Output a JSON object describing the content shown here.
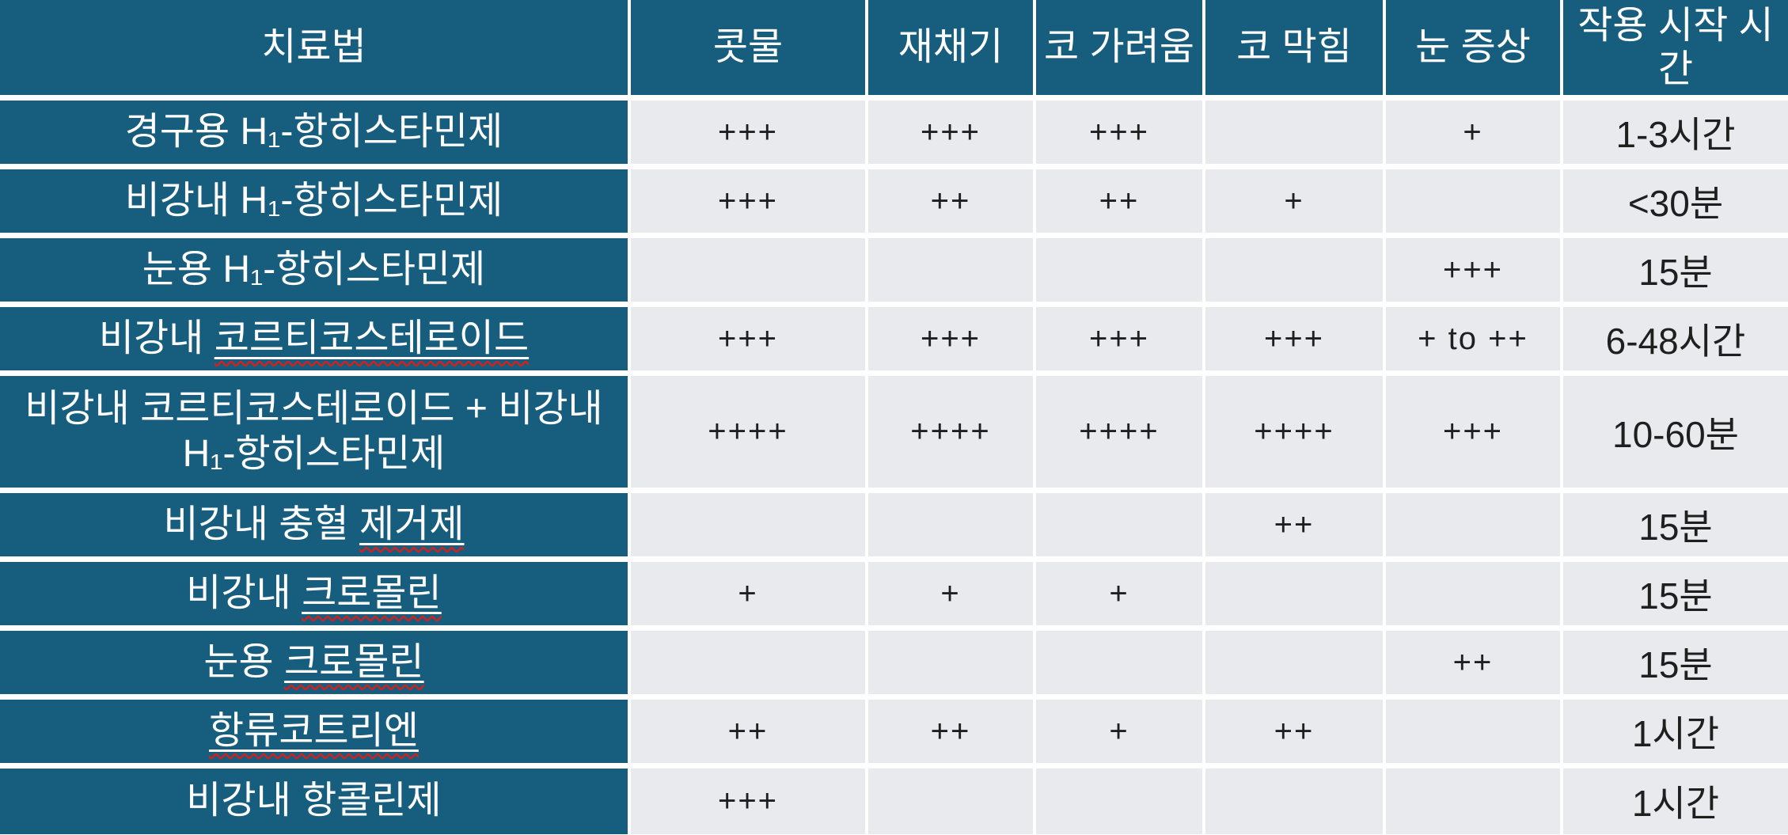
{
  "colors": {
    "header_teal": "#175E7E",
    "cell_gray": "#E8EAED",
    "grid_white": "#FFFFFF",
    "body_text": "#1F1F1F",
    "squiggle_red": "#CC2222"
  },
  "table": {
    "columns": [
      "치료법",
      "콧물",
      "재채기",
      "코 가려움",
      "코 막힘",
      "눈 증상",
      "작용 시작 시간"
    ],
    "rows": [
      {
        "treatment": [
          {
            "text": "경구용 H₁-항히스타민제",
            "misspelled": false
          }
        ],
        "values": [
          "+++",
          "+++",
          "+++",
          "",
          "+",
          "1-3시간"
        ],
        "tall": false
      },
      {
        "treatment": [
          {
            "text": "비강내 H₁-항히스타민제",
            "misspelled": false
          }
        ],
        "values": [
          "+++",
          "++",
          "++",
          "+",
          "",
          "<30분"
        ],
        "tall": false
      },
      {
        "treatment": [
          {
            "text": "눈용 H₁-항히스타민제",
            "misspelled": false
          }
        ],
        "values": [
          "",
          "",
          "",
          "",
          "+++",
          "15분"
        ],
        "tall": false
      },
      {
        "treatment": [
          {
            "text": "비강내 ",
            "misspelled": false
          },
          {
            "text": "코르티코스테로이드",
            "misspelled": true
          }
        ],
        "values": [
          "+++",
          "+++",
          "+++",
          "+++",
          "+ to ++",
          "6-48시간"
        ],
        "tall": false
      },
      {
        "treatment": [
          {
            "text": "비강내 코르티코스테로이드 + 비강내 H₁-항히스타민제",
            "misspelled": false
          }
        ],
        "values": [
          "++++",
          "++++",
          "++++",
          "++++",
          "+++",
          "10-60분"
        ],
        "tall": true
      },
      {
        "treatment": [
          {
            "text": "비강내 충혈 ",
            "misspelled": false
          },
          {
            "text": "제거제",
            "misspelled": true
          }
        ],
        "values": [
          "",
          "",
          "",
          "++",
          "",
          "15분"
        ],
        "tall": false
      },
      {
        "treatment": [
          {
            "text": "비강내 ",
            "misspelled": false
          },
          {
            "text": "크로몰린",
            "misspelled": true
          }
        ],
        "values": [
          "+",
          "+",
          "+",
          "",
          "",
          "15분"
        ],
        "tall": false
      },
      {
        "treatment": [
          {
            "text": "눈용 ",
            "misspelled": false
          },
          {
            "text": "크로몰린",
            "misspelled": true
          }
        ],
        "values": [
          "",
          "",
          "",
          "",
          "++",
          "15분"
        ],
        "tall": false
      },
      {
        "treatment": [
          {
            "text": "항류코트리엔",
            "misspelled": true
          }
        ],
        "values": [
          "++",
          "++",
          "+",
          "++",
          "",
          "1시간"
        ],
        "tall": false
      },
      {
        "treatment": [
          {
            "text": "비강내 항콜린제",
            "misspelled": false
          }
        ],
        "values": [
          "+++",
          "",
          "",
          "",
          "",
          "1시간"
        ],
        "tall": false
      }
    ]
  }
}
